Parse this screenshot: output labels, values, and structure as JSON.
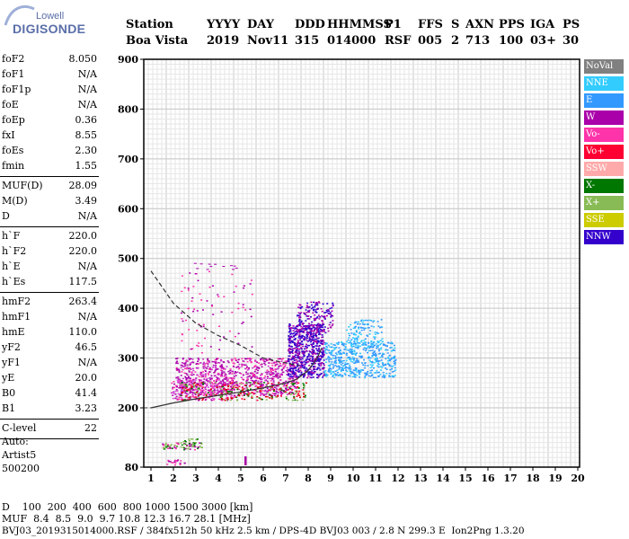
{
  "logo": {
    "top": "Lowell",
    "main": "DIGISONDE"
  },
  "header": {
    "row1": [
      "Station",
      "YYYY",
      "DAY",
      "DDD",
      "HHMMSS",
      "P1",
      "FFS",
      "S",
      "AXN",
      "PPS",
      "IGA",
      "PS"
    ],
    "row2": [
      "Boa Vista",
      "2019",
      "Nov11",
      "315",
      "014000",
      "RSF",
      "005",
      "2",
      "713",
      "100",
      "03+",
      "30"
    ]
  },
  "params": {
    "g1": [
      {
        "name": "foF2",
        "value": "8.050"
      },
      {
        "name": "foF1",
        "value": "N/A"
      },
      {
        "name": "foF1p",
        "value": "N/A"
      },
      {
        "name": "foE",
        "value": "N/A"
      },
      {
        "name": "foEp",
        "value": "0.36"
      },
      {
        "name": "fxI",
        "value": "8.55"
      },
      {
        "name": "foEs",
        "value": "2.30"
      },
      {
        "name": "fmin",
        "value": "1.55"
      }
    ],
    "g2": [
      {
        "name": "MUF(D)",
        "value": "28.09"
      },
      {
        "name": "M(D)",
        "value": "3.49"
      },
      {
        "name": "D",
        "value": "N/A"
      }
    ],
    "g3": [
      {
        "name": "h`F",
        "value": "220.0"
      },
      {
        "name": "h`F2",
        "value": "220.0"
      },
      {
        "name": "h`E",
        "value": "N/A"
      },
      {
        "name": "h`Es",
        "value": "117.5"
      }
    ],
    "g4": [
      {
        "name": "hmF2",
        "value": "263.4"
      },
      {
        "name": "hmF1",
        "value": "N/A"
      },
      {
        "name": "hmE",
        "value": "110.0"
      },
      {
        "name": "yF2",
        "value": "46.5"
      },
      {
        "name": "yF1",
        "value": "N/A"
      },
      {
        "name": "yE",
        "value": "20.0"
      },
      {
        "name": "B0",
        "value": "41.4"
      },
      {
        "name": "B1",
        "value": "3.23"
      }
    ],
    "g5": [
      {
        "name": "C-level",
        "value": "22"
      }
    ],
    "auto": [
      "Auto:",
      "Artist5",
      "500200"
    ]
  },
  "legend": [
    {
      "label": "NoVal",
      "color": "#808080"
    },
    {
      "label": "NNE",
      "color": "#33ccff"
    },
    {
      "label": "E",
      "color": "#3399ff"
    },
    {
      "label": "W",
      "color": "#aa00aa"
    },
    {
      "label": "Vo-",
      "color": "#ff33aa"
    },
    {
      "label": "Vo+",
      "color": "#ff0033"
    },
    {
      "label": "SSW",
      "color": "#ffaaaa"
    },
    {
      "label": "X-",
      "color": "#007700"
    },
    {
      "label": "X+",
      "color": "#88bb55"
    },
    {
      "label": "SSE",
      "color": "#cccc00"
    },
    {
      "label": "NNW",
      "color": "#3300cc"
    }
  ],
  "chart_data": {
    "type": "scatter",
    "x_ticks": [
      "1",
      "2",
      "3",
      "4",
      "5",
      "6",
      "7",
      "8",
      "9",
      "10",
      "11",
      "12",
      "13",
      "14",
      "15",
      "16",
      "17",
      "18",
      "19",
      "20"
    ],
    "y_ticks": [
      "80",
      "200",
      "300",
      "400",
      "500",
      "600",
      "700",
      "800",
      "900"
    ],
    "xlim": [
      1,
      20
    ],
    "ylim": [
      80,
      900
    ],
    "traces": {
      "o_trace_curve": [
        [
          1,
          200
        ],
        [
          2,
          210
        ],
        [
          3,
          218
        ],
        [
          4,
          225
        ],
        [
          5,
          232
        ],
        [
          6,
          240
        ],
        [
          7,
          250
        ],
        [
          7.5,
          258
        ],
        [
          8,
          275
        ],
        [
          8.4,
          300
        ],
        [
          8.6,
          320
        ]
      ],
      "dashed_profile": [
        [
          1,
          475
        ],
        [
          2,
          410
        ],
        [
          3,
          370
        ],
        [
          4,
          345
        ],
        [
          5,
          325
        ],
        [
          6,
          300
        ],
        [
          7,
          290
        ],
        [
          7.6,
          285
        ]
      ]
    }
  },
  "bottom": {
    "d_row": "D    100  200  400  600  800 1000 1500 3000 [km]",
    "muf_row": "MUF  8.4  8.5  9.0  9.7 10.8 12.3 16.7 28.1 [MHz]",
    "footer": "BVJ03_2019315014000.RSF / 384fx512h 50 kHz 2.5 km / DPS-4D BVJ03 003 / 2.8 N 299.3 E  Ion2Png 1.3.20"
  }
}
